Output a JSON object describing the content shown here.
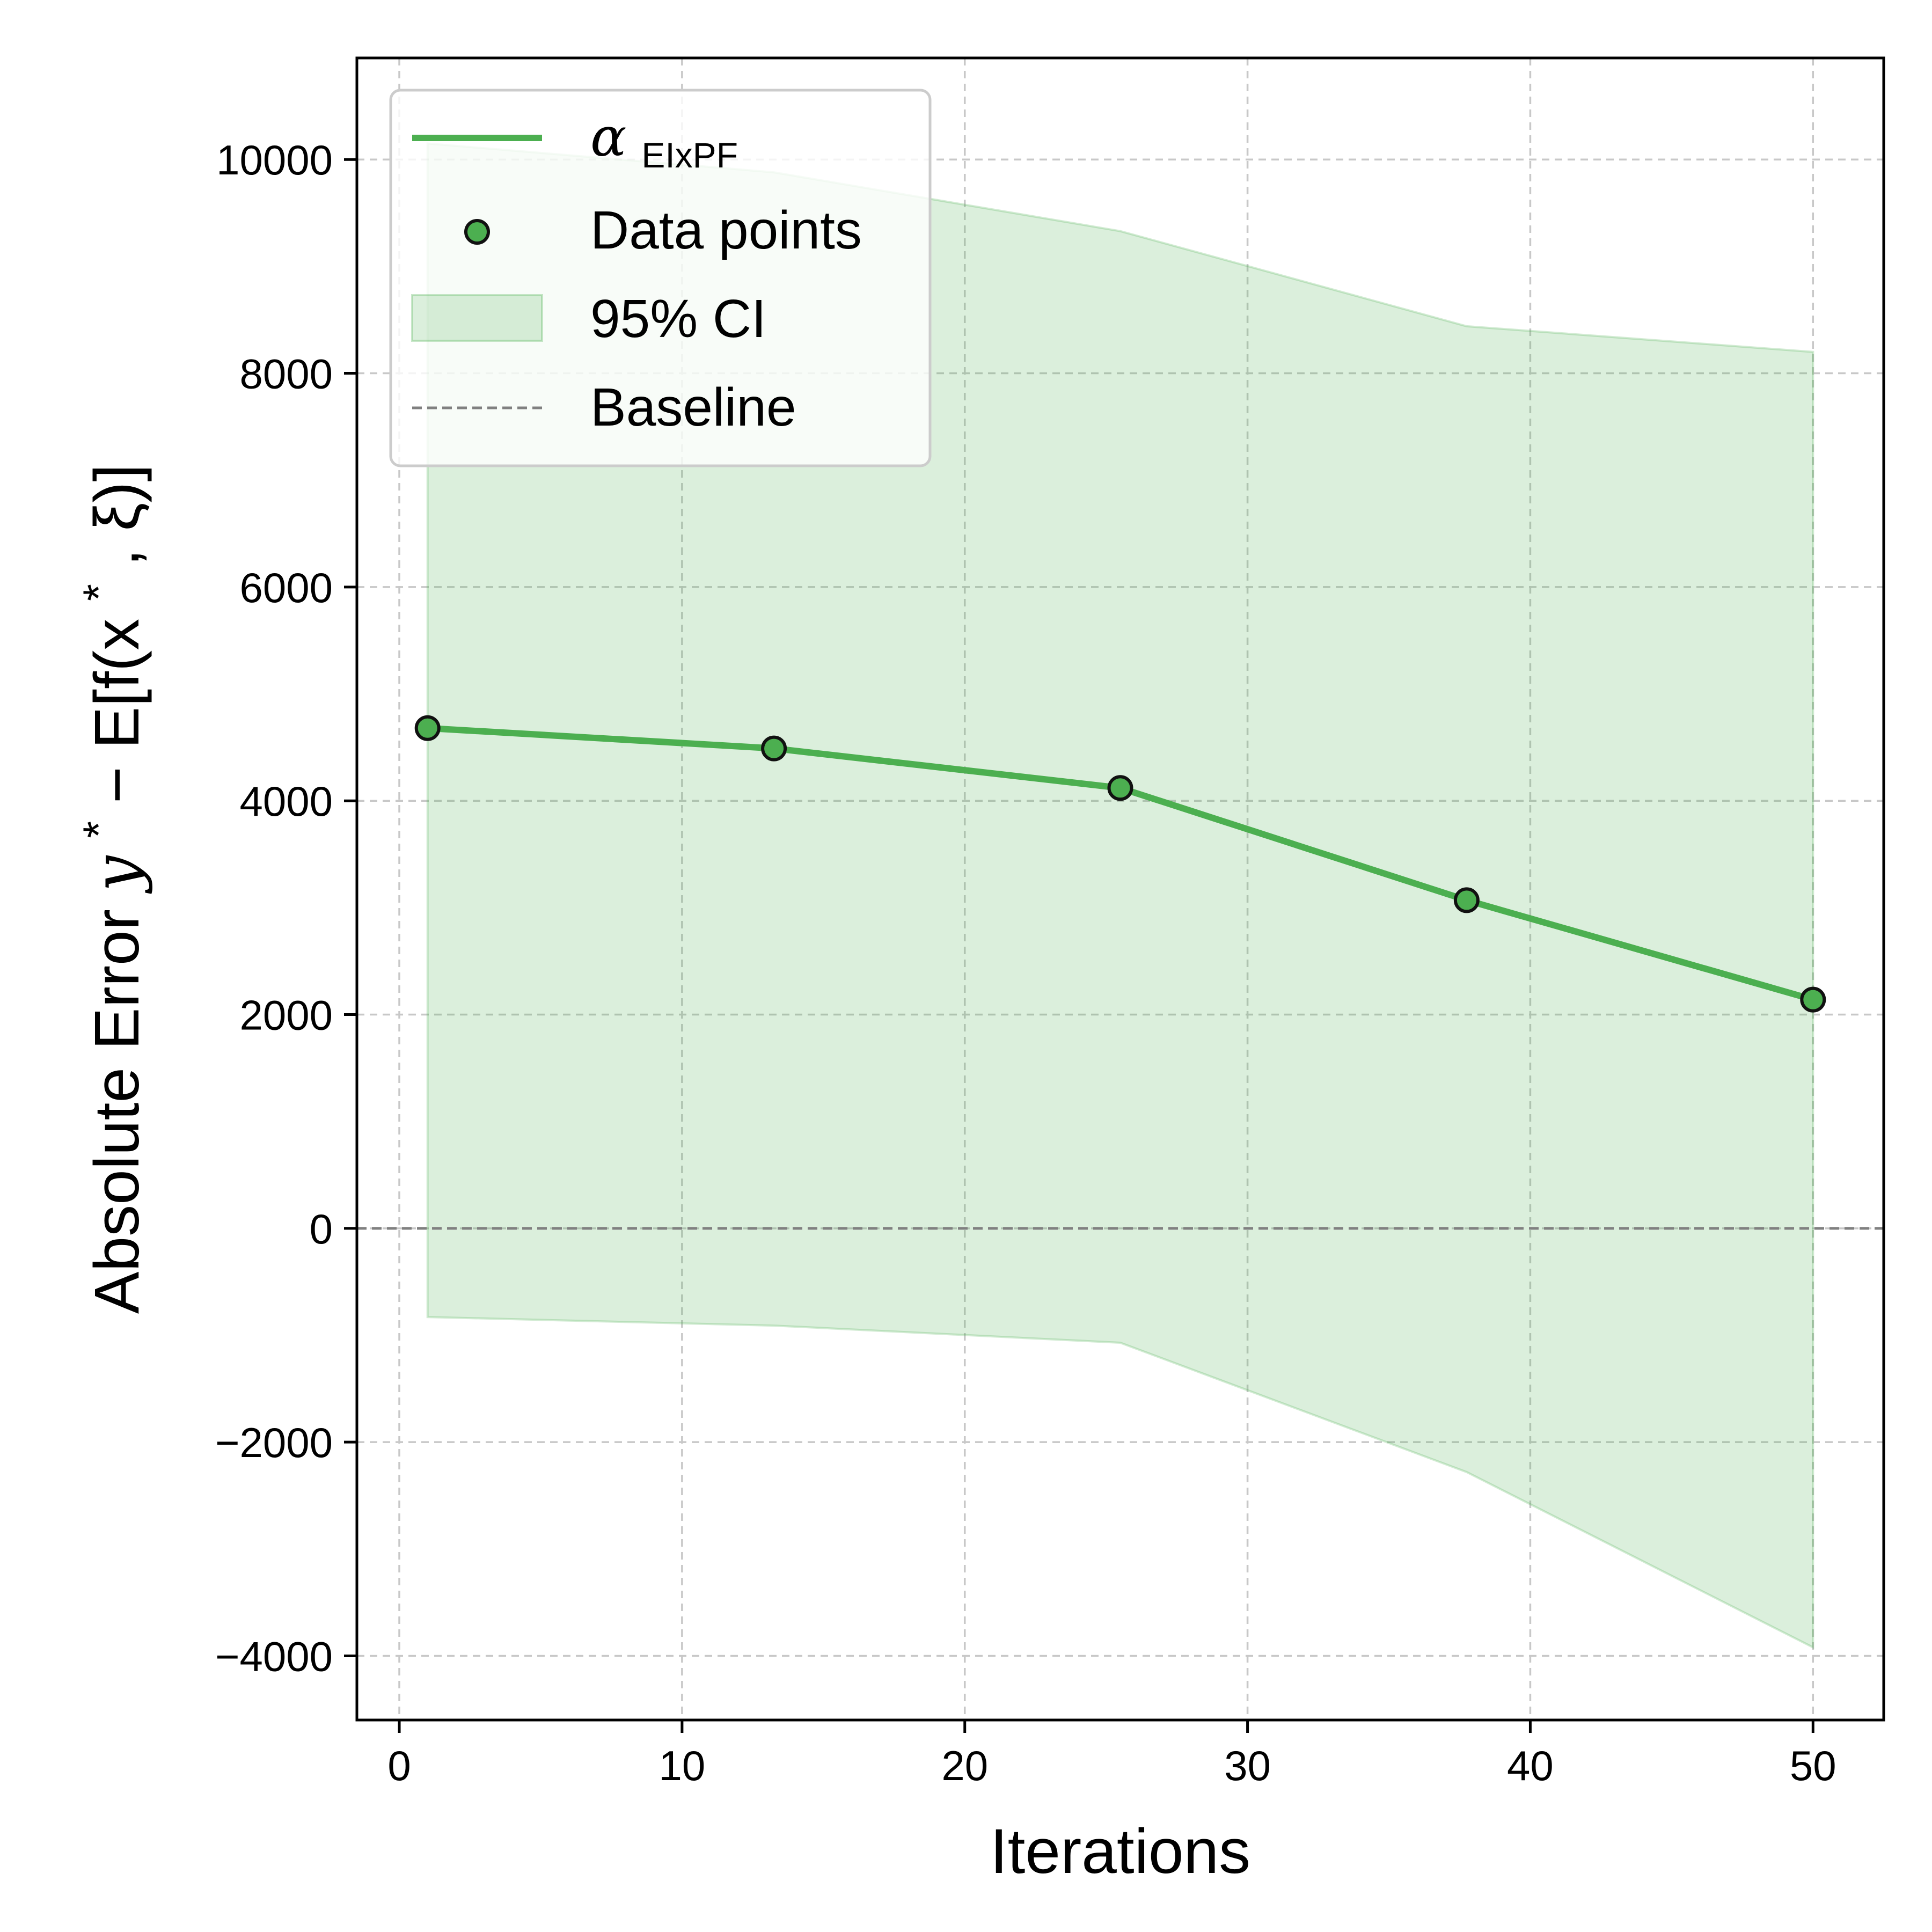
{
  "chart_data": {
    "type": "line",
    "title": "",
    "xlabel": "Iterations",
    "ylabel": {
      "text": "Absolute Error",
      "math_prefix": "y",
      "sup_star": "*",
      "math_middle": " − E[f(x",
      "math_end": ", ξ)]"
    },
    "xlim": [
      -1.5,
      52.5
    ],
    "ylim": [
      -4600,
      10950
    ],
    "x_ticks": [
      0,
      10,
      20,
      30,
      40,
      50
    ],
    "y_ticks": [
      -4000,
      -2000,
      0,
      2000,
      4000,
      6000,
      8000,
      10000
    ],
    "x_tick_labels": [
      "0",
      "10",
      "20",
      "30",
      "40",
      "50"
    ],
    "y_tick_labels": [
      "−4000",
      "−2000",
      "0",
      "2000",
      "4000",
      "6000",
      "8000",
      "10000"
    ],
    "grid": true,
    "series": [
      {
        "kind": "line",
        "legend_main": "α",
        "legend_sub": "EIxPF",
        "color": "#4caf50",
        "x": [
          1,
          13.25,
          25.5,
          37.75,
          50
        ],
        "y": [
          4680,
          4490,
          4120,
          3070,
          2140
        ]
      },
      {
        "kind": "scatter",
        "name": "Data points",
        "color": "#4caf50",
        "edge_color": "#111111",
        "x": [
          1,
          13.25,
          25.5,
          37.75,
          50
        ],
        "y": [
          4680,
          4490,
          4120,
          3070,
          2140
        ]
      },
      {
        "kind": "band",
        "name": "95% CI",
        "color": "#4caf50",
        "x": [
          1,
          13.25,
          25.5,
          37.75,
          50
        ],
        "upper": [
          10150,
          9880,
          9330,
          8440,
          8200
        ],
        "lower": [
          -830,
          -910,
          -1070,
          -2280,
          -3920
        ]
      },
      {
        "kind": "hline",
        "name": "Baseline",
        "color": "#808080",
        "y": 0
      }
    ],
    "legend_position": "top-left"
  }
}
